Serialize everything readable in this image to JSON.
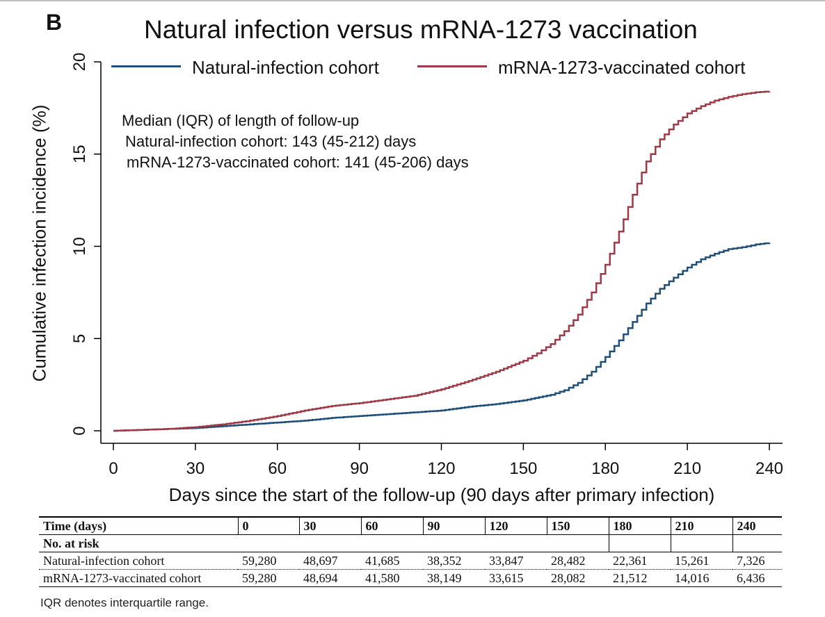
{
  "panel_label": "B",
  "chart_data": {
    "type": "line",
    "title": "Natural infection versus mRNA-1273 vaccination",
    "xlabel": "Days since the start of the follow-up (90 days after primary infection)",
    "ylabel": "Cumulative infection incidence (%)",
    "xlim": [
      0,
      240
    ],
    "ylim": [
      0,
      20
    ],
    "x_ticks": [
      0,
      30,
      60,
      90,
      120,
      150,
      180,
      210,
      240
    ],
    "y_ticks": [
      0,
      5,
      10,
      15,
      20
    ],
    "grid": false,
    "legend_position": "top",
    "series": [
      {
        "name": "Natural-infection cohort",
        "color": "#1f4e79",
        "x": [
          0,
          10,
          20,
          30,
          40,
          50,
          60,
          70,
          80,
          90,
          100,
          110,
          120,
          130,
          140,
          150,
          160,
          165,
          170,
          175,
          180,
          185,
          190,
          195,
          200,
          205,
          210,
          215,
          220,
          225,
          230,
          235,
          240
        ],
        "y": [
          0,
          0.05,
          0.1,
          0.15,
          0.25,
          0.35,
          0.45,
          0.55,
          0.7,
          0.8,
          0.9,
          1.0,
          1.1,
          1.3,
          1.45,
          1.65,
          1.95,
          2.2,
          2.6,
          3.2,
          4.0,
          4.9,
          5.9,
          6.9,
          7.7,
          8.3,
          8.85,
          9.3,
          9.6,
          9.85,
          9.95,
          10.1,
          10.2
        ]
      },
      {
        "name": "mRNA-1273-vaccinated cohort",
        "color": "#9e3a45",
        "x": [
          0,
          10,
          20,
          30,
          40,
          50,
          60,
          70,
          80,
          90,
          100,
          110,
          120,
          130,
          140,
          150,
          155,
          160,
          165,
          170,
          175,
          180,
          185,
          190,
          195,
          200,
          205,
          210,
          215,
          220,
          225,
          230,
          235,
          240
        ],
        "y": [
          0,
          0.05,
          0.1,
          0.2,
          0.35,
          0.55,
          0.8,
          1.1,
          1.35,
          1.5,
          1.7,
          1.9,
          2.25,
          2.7,
          3.2,
          3.8,
          4.2,
          4.7,
          5.4,
          6.3,
          7.5,
          9.0,
          10.8,
          12.8,
          14.6,
          15.8,
          16.6,
          17.2,
          17.6,
          17.9,
          18.1,
          18.25,
          18.35,
          18.4
        ]
      }
    ],
    "annotation": {
      "title": "Median (IQR) of length of follow-up",
      "lines": [
        "Natural-infection cohort: 143 (45-212) days",
        "mRNA-1273-vaccinated cohort: 141 (45-206) days"
      ]
    }
  },
  "risk_table": {
    "header_label": "Time (days)",
    "times": [
      "0",
      "30",
      "60",
      "90",
      "120",
      "150",
      "180",
      "210",
      "240"
    ],
    "subheader": "No. at risk",
    "rows": [
      {
        "label": "Natural-infection cohort",
        "values": [
          "59,280",
          "48,697",
          "41,685",
          "38,352",
          "33,847",
          "28,482",
          "22,361",
          "15,261",
          "7,326"
        ]
      },
      {
        "label": "mRNA-1273-vaccinated cohort",
        "values": [
          "59,280",
          "48,694",
          "41,580",
          "38,149",
          "33,615",
          "28,082",
          "21,512",
          "14,016",
          "6,436"
        ]
      }
    ]
  },
  "footnote": "IQR denotes interquartile range."
}
